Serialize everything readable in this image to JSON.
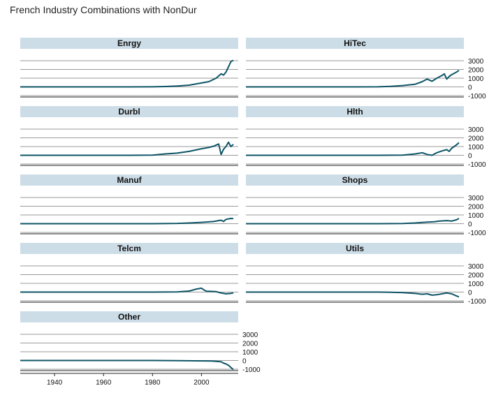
{
  "title": "French Industry Combinations with NonDur",
  "colors": {
    "series": "#0e5566",
    "strip_bg": "#cddde7",
    "grid": "#9a9a9a",
    "axis": "#222222"
  },
  "chart_data": {
    "type": "line",
    "layout": "faceted",
    "title": "French Industry Combinations with NonDur",
    "xlim": [
      1926,
      2015
    ],
    "ylim": [
      -1000,
      3000
    ],
    "x_ticks": [
      1940,
      1960,
      1980,
      2000
    ],
    "y_ticks": [
      -1000,
      0,
      1000,
      2000,
      3000
    ],
    "grid": true,
    "panels": [
      {
        "name": "Enrgy",
        "x": [
          1926,
          1950,
          1970,
          1980,
          1985,
          1990,
          1995,
          2000,
          2003,
          2006,
          2008,
          2009,
          2010,
          2012,
          2013
        ],
        "y": [
          0,
          0,
          0,
          5,
          40,
          100,
          200,
          450,
          600,
          1000,
          1500,
          1350,
          1700,
          2900,
          3050
        ]
      },
      {
        "name": "HiTec",
        "x": [
          1926,
          1970,
          1980,
          1985,
          1990,
          1995,
          1998,
          2000,
          2002,
          2004,
          2006,
          2007,
          2008,
          2009,
          2010,
          2012,
          2013
        ],
        "y": [
          0,
          0,
          10,
          60,
          150,
          300,
          600,
          900,
          650,
          1000,
          1300,
          1500,
          900,
          1200,
          1400,
          1700,
          1900
        ]
      },
      {
        "name": "Durbl",
        "x": [
          1926,
          1970,
          1980,
          1985,
          1990,
          1995,
          2000,
          2003,
          2005,
          2007,
          2008,
          2009,
          2010,
          2011,
          2012,
          2013
        ],
        "y": [
          0,
          0,
          20,
          150,
          250,
          450,
          750,
          900,
          1050,
          1300,
          100,
          700,
          1000,
          1500,
          1000,
          1250
        ]
      },
      {
        "name": "Hlth",
        "x": [
          1926,
          1980,
          1990,
          1995,
          1998,
          2000,
          2002,
          2004,
          2006,
          2008,
          2009,
          2010,
          2012,
          2013
        ],
        "y": [
          0,
          0,
          20,
          150,
          300,
          100,
          0,
          300,
          500,
          650,
          450,
          800,
          1200,
          1450
        ]
      },
      {
        "name": "Manuf",
        "x": [
          1926,
          1980,
          1990,
          1995,
          2000,
          2005,
          2008,
          2009,
          2010,
          2012,
          2013
        ],
        "y": [
          0,
          0,
          30,
          80,
          150,
          250,
          400,
          250,
          500,
          600,
          580
        ]
      },
      {
        "name": "Shops",
        "x": [
          1926,
          1980,
          1990,
          1995,
          2000,
          2003,
          2005,
          2008,
          2010,
          2012,
          2013
        ],
        "y": [
          0,
          0,
          20,
          80,
          180,
          220,
          300,
          350,
          300,
          450,
          600
        ]
      },
      {
        "name": "Telcm",
        "x": [
          1926,
          1980,
          1990,
          1995,
          1998,
          2000,
          2001,
          2002,
          2004,
          2006,
          2008,
          2010,
          2012,
          2013
        ],
        "y": [
          0,
          0,
          20,
          120,
          350,
          450,
          250,
          100,
          80,
          50,
          -100,
          -200,
          -150,
          -100
        ]
      },
      {
        "name": "Utils",
        "x": [
          1926,
          1980,
          1985,
          1990,
          1995,
          1998,
          2000,
          2002,
          2004,
          2006,
          2008,
          2010,
          2012,
          2013
        ],
        "y": [
          0,
          0,
          -20,
          -60,
          -150,
          -250,
          -200,
          -350,
          -300,
          -200,
          -100,
          -200,
          -450,
          -550
        ]
      },
      {
        "name": "Other",
        "x": [
          1926,
          1980,
          1990,
          2000,
          2004,
          2006,
          2008,
          2009,
          2010,
          2011,
          2012,
          2013
        ],
        "y": [
          0,
          0,
          -20,
          -50,
          -60,
          -100,
          -150,
          -300,
          -400,
          -550,
          -800,
          -1050
        ]
      }
    ]
  }
}
